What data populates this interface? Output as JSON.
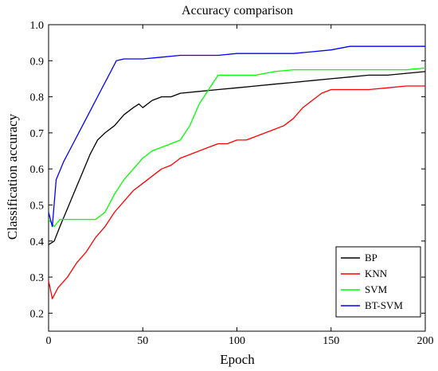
{
  "chart_data": {
    "type": "line",
    "title": "Accuracy comparison",
    "xlabel": "Epoch",
    "ylabel": "Classification accuracy",
    "xlim": [
      0,
      200
    ],
    "ylim": [
      0.15,
      1.0
    ],
    "xticks": [
      0,
      50,
      100,
      150,
      200
    ],
    "yticks": [
      0.2,
      0.3,
      0.4,
      0.5,
      0.6,
      0.7,
      0.8,
      0.9,
      1.0
    ],
    "xtick_labels": [
      "0",
      "50",
      "100",
      "150",
      "200"
    ],
    "ytick_labels": [
      "0.2",
      "0.3",
      "0.4",
      "0.5",
      "0.6",
      "0.7",
      "0.8",
      "0.9",
      "1.0"
    ],
    "grid": false,
    "legend_position": "bottom-right",
    "series": [
      {
        "name": "BP",
        "color": "#000000",
        "points": [
          [
            0,
            0.39
          ],
          [
            3,
            0.4
          ],
          [
            6,
            0.44
          ],
          [
            10,
            0.49
          ],
          [
            14,
            0.54
          ],
          [
            18,
            0.59
          ],
          [
            22,
            0.64
          ],
          [
            26,
            0.68
          ],
          [
            30,
            0.7
          ],
          [
            35,
            0.72
          ],
          [
            40,
            0.75
          ],
          [
            45,
            0.77
          ],
          [
            48,
            0.78
          ],
          [
            50,
            0.77
          ],
          [
            55,
            0.79
          ],
          [
            60,
            0.8
          ],
          [
            65,
            0.8
          ],
          [
            70,
            0.81
          ],
          [
            80,
            0.815
          ],
          [
            90,
            0.82
          ],
          [
            100,
            0.825
          ],
          [
            110,
            0.83
          ],
          [
            120,
            0.835
          ],
          [
            130,
            0.84
          ],
          [
            140,
            0.845
          ],
          [
            150,
            0.85
          ],
          [
            160,
            0.855
          ],
          [
            170,
            0.86
          ],
          [
            180,
            0.86
          ],
          [
            190,
            0.865
          ],
          [
            200,
            0.87
          ]
        ]
      },
      {
        "name": "KNN",
        "color": "#ff0000",
        "points": [
          [
            0,
            0.29
          ],
          [
            2,
            0.24
          ],
          [
            5,
            0.27
          ],
          [
            10,
            0.3
          ],
          [
            15,
            0.34
          ],
          [
            20,
            0.37
          ],
          [
            25,
            0.41
          ],
          [
            30,
            0.44
          ],
          [
            35,
            0.48
          ],
          [
            40,
            0.51
          ],
          [
            45,
            0.54
          ],
          [
            50,
            0.56
          ],
          [
            55,
            0.58
          ],
          [
            60,
            0.6
          ],
          [
            65,
            0.61
          ],
          [
            70,
            0.63
          ],
          [
            75,
            0.64
          ],
          [
            80,
            0.65
          ],
          [
            85,
            0.66
          ],
          [
            90,
            0.67
          ],
          [
            95,
            0.67
          ],
          [
            100,
            0.68
          ],
          [
            105,
            0.68
          ],
          [
            110,
            0.69
          ],
          [
            115,
            0.7
          ],
          [
            120,
            0.71
          ],
          [
            125,
            0.72
          ],
          [
            130,
            0.74
          ],
          [
            135,
            0.77
          ],
          [
            140,
            0.79
          ],
          [
            145,
            0.81
          ],
          [
            150,
            0.82
          ],
          [
            160,
            0.82
          ],
          [
            170,
            0.82
          ],
          [
            180,
            0.825
          ],
          [
            190,
            0.83
          ],
          [
            200,
            0.83
          ]
        ]
      },
      {
        "name": "SVM",
        "color": "#00ff00",
        "points": [
          [
            0,
            0.46
          ],
          [
            3,
            0.44
          ],
          [
            6,
            0.46
          ],
          [
            10,
            0.46
          ],
          [
            15,
            0.46
          ],
          [
            20,
            0.46
          ],
          [
            25,
            0.46
          ],
          [
            30,
            0.48
          ],
          [
            35,
            0.53
          ],
          [
            40,
            0.57
          ],
          [
            45,
            0.6
          ],
          [
            50,
            0.63
          ],
          [
            55,
            0.65
          ],
          [
            60,
            0.66
          ],
          [
            65,
            0.67
          ],
          [
            70,
            0.68
          ],
          [
            75,
            0.72
          ],
          [
            80,
            0.78
          ],
          [
            85,
            0.82
          ],
          [
            90,
            0.86
          ],
          [
            100,
            0.86
          ],
          [
            110,
            0.86
          ],
          [
            120,
            0.87
          ],
          [
            130,
            0.875
          ],
          [
            140,
            0.875
          ],
          [
            150,
            0.875
          ],
          [
            160,
            0.875
          ],
          [
            170,
            0.875
          ],
          [
            180,
            0.875
          ],
          [
            190,
            0.875
          ],
          [
            200,
            0.88
          ]
        ]
      },
      {
        "name": "BT-SVM",
        "color": "#0000ff",
        "points": [
          [
            0,
            0.48
          ],
          [
            2,
            0.44
          ],
          [
            4,
            0.57
          ],
          [
            8,
            0.62
          ],
          [
            12,
            0.66
          ],
          [
            16,
            0.7
          ],
          [
            20,
            0.74
          ],
          [
            24,
            0.78
          ],
          [
            28,
            0.82
          ],
          [
            32,
            0.86
          ],
          [
            36,
            0.9
          ],
          [
            40,
            0.905
          ],
          [
            50,
            0.905
          ],
          [
            60,
            0.91
          ],
          [
            70,
            0.915
          ],
          [
            80,
            0.915
          ],
          [
            90,
            0.915
          ],
          [
            100,
            0.92
          ],
          [
            110,
            0.92
          ],
          [
            120,
            0.92
          ],
          [
            130,
            0.92
          ],
          [
            140,
            0.925
          ],
          [
            150,
            0.93
          ],
          [
            160,
            0.94
          ],
          [
            170,
            0.94
          ],
          [
            180,
            0.94
          ],
          [
            190,
            0.94
          ],
          [
            200,
            0.94
          ]
        ]
      }
    ]
  }
}
